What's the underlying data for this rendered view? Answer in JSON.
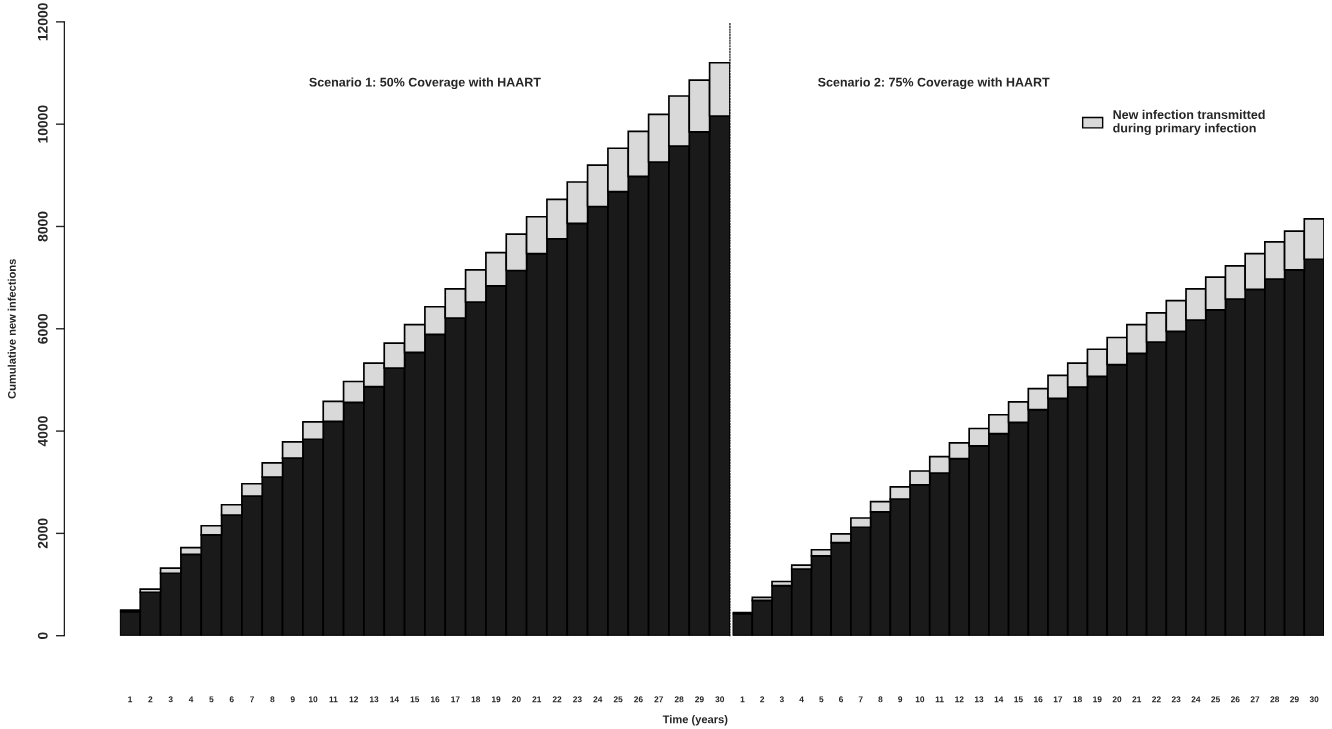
{
  "chart_data": [
    {
      "type": "bar",
      "title": "Scenario 1: 50% Coverage with HAART",
      "ylabel": "Cumulative new infections",
      "xlabel": "Time (years)",
      "stacked": true,
      "categories": [
        "1",
        "2",
        "3",
        "4",
        "5",
        "6",
        "7",
        "8",
        "9",
        "10",
        "11",
        "12",
        "13",
        "14",
        "15",
        "16",
        "17",
        "18",
        "19",
        "20",
        "21",
        "22",
        "23",
        "24",
        "25",
        "26",
        "27",
        "28",
        "29",
        "30"
      ],
      "series": [
        {
          "color": "#1a1a1a",
          "values": [
            470,
            850,
            1220,
            1590,
            1970,
            2360,
            2730,
            3100,
            3470,
            3840,
            4190,
            4560,
            4870,
            5230,
            5540,
            5890,
            6210,
            6520,
            6840,
            7140,
            7470,
            7760,
            8060,
            8390,
            8680,
            8980,
            9260,
            9570,
            9850,
            10160
          ]
        },
        {
          "color": "#d9d9d9",
          "values": [
            30,
            60,
            100,
            130,
            180,
            200,
            240,
            280,
            320,
            340,
            390,
            410,
            460,
            490,
            540,
            540,
            570,
            630,
            650,
            710,
            720,
            770,
            810,
            810,
            850,
            880,
            930,
            980,
            1010,
            1040
          ]
        }
      ],
      "ylim": [
        0,
        12000
      ],
      "yticks": [
        0,
        2000,
        4000,
        6000,
        8000,
        10000,
        12000
      ],
      "grid": false,
      "legend": false
    },
    {
      "type": "bar",
      "title": "Scenario 2: 75% Coverage with HAART",
      "stacked": true,
      "categories": [
        "1",
        "2",
        "3",
        "4",
        "5",
        "6",
        "7",
        "8",
        "9",
        "10",
        "11",
        "12",
        "13",
        "14",
        "15",
        "16",
        "17",
        "18",
        "19",
        "20",
        "21",
        "22",
        "23",
        "24",
        "25",
        "26",
        "27",
        "28",
        "29",
        "30"
      ],
      "series": [
        {
          "color": "#1a1a1a",
          "values": [
            430,
            690,
            980,
            1300,
            1560,
            1820,
            2120,
            2420,
            2670,
            2950,
            3180,
            3460,
            3710,
            3950,
            4170,
            4420,
            4640,
            4860,
            5070,
            5300,
            5520,
            5740,
            5950,
            6170,
            6370,
            6580,
            6770,
            6970,
            7150,
            7360
          ]
        },
        {
          "name": "New infection transmitted\nduring primary infection",
          "color": "#d9d9d9",
          "values": [
            20,
            60,
            80,
            80,
            120,
            170,
            180,
            200,
            240,
            270,
            320,
            310,
            340,
            370,
            400,
            410,
            450,
            470,
            530,
            530,
            560,
            570,
            600,
            610,
            640,
            650,
            700,
            730,
            760,
            790
          ]
        }
      ],
      "ylim": [
        0,
        12000
      ],
      "tick_labels": "x",
      "grid": false,
      "legend": "top right"
    }
  ]
}
